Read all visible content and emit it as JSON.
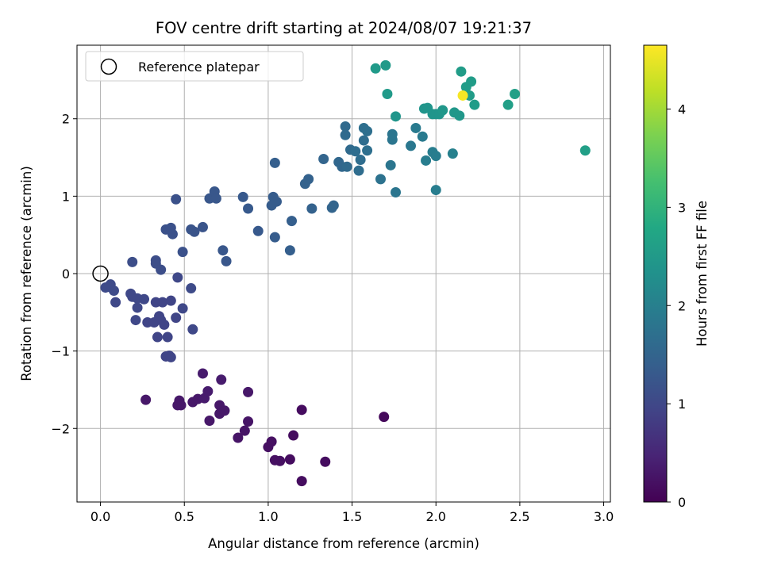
{
  "chart_data": {
    "type": "scatter",
    "title": "FOV centre drift starting at 2024/08/07 19:21:37",
    "xlabel": "Angular distance from reference (arcmin)",
    "ylabel": "Rotation from reference (arcmin)",
    "xlim": [
      -0.14,
      3.04
    ],
    "ylim": [
      -2.95,
      2.95
    ],
    "x_ticks": [
      "0.0",
      "0.5",
      "1.0",
      "1.5",
      "2.0",
      "2.5",
      "3.0"
    ],
    "y_ticks": [
      "−2",
      "−1",
      "0",
      "1",
      "2"
    ],
    "grid": true,
    "legend": {
      "label": "Reference platepar",
      "position": "top-left"
    },
    "reference_point": {
      "x": 0.0,
      "y": 0.0
    },
    "colorbar": {
      "label": "Hours from first FF file",
      "colormap": "viridis",
      "range": [
        0,
        4.65
      ],
      "ticks": [
        "0",
        "1",
        "2",
        "3",
        "4"
      ]
    },
    "series": [
      {
        "name": "FOV centre drift",
        "points": [
          [
            0.03,
            -0.18,
            1.05
          ],
          [
            0.05,
            -0.17,
            1.05
          ],
          [
            0.06,
            -0.14,
            1.05
          ],
          [
            0.08,
            -0.22,
            1.05
          ],
          [
            0.09,
            -0.37,
            1.0
          ],
          [
            0.18,
            -0.26,
            1.0
          ],
          [
            0.19,
            -0.3,
            1.0
          ],
          [
            0.21,
            -0.6,
            1.0
          ],
          [
            0.22,
            -0.44,
            1.0
          ],
          [
            0.22,
            -0.32,
            1.0
          ],
          [
            0.26,
            -0.33,
            1.0
          ],
          [
            0.28,
            -0.63,
            0.95
          ],
          [
            0.32,
            -0.63,
            0.95
          ],
          [
            0.33,
            -0.37,
            0.95
          ],
          [
            0.34,
            -0.82,
            0.95
          ],
          [
            0.35,
            -0.55,
            0.95
          ],
          [
            0.36,
            -0.6,
            0.95
          ],
          [
            0.37,
            -0.37,
            0.95
          ],
          [
            0.38,
            -0.66,
            0.95
          ],
          [
            0.39,
            -1.07,
            0.95
          ],
          [
            0.4,
            -0.82,
            0.95
          ],
          [
            0.41,
            -1.06,
            0.95
          ],
          [
            0.42,
            -1.08,
            0.95
          ],
          [
            0.42,
            -0.35,
            0.95
          ],
          [
            0.45,
            -0.57,
            0.95
          ],
          [
            0.46,
            -0.05,
            1.0
          ],
          [
            0.49,
            -0.45,
            1.0
          ],
          [
            0.54,
            -0.19,
            1.05
          ],
          [
            0.55,
            -0.72,
            1.0
          ],
          [
            0.19,
            0.15,
            1.1
          ],
          [
            0.33,
            0.13,
            1.1
          ],
          [
            0.33,
            0.17,
            1.1
          ],
          [
            0.36,
            0.05,
            1.1
          ],
          [
            0.39,
            0.57,
            1.15
          ],
          [
            0.41,
            0.57,
            1.15
          ],
          [
            0.42,
            0.59,
            1.15
          ],
          [
            0.43,
            0.51,
            1.15
          ],
          [
            0.45,
            0.96,
            1.15
          ],
          [
            0.49,
            0.28,
            1.15
          ],
          [
            0.54,
            0.57,
            1.2
          ],
          [
            0.56,
            0.54,
            1.2
          ],
          [
            0.61,
            0.6,
            1.2
          ],
          [
            0.65,
            0.97,
            1.25
          ],
          [
            0.68,
            1.06,
            1.25
          ],
          [
            0.69,
            0.97,
            1.25
          ],
          [
            0.73,
            0.3,
            1.25
          ],
          [
            0.75,
            0.16,
            1.25
          ],
          [
            0.85,
            0.99,
            1.3
          ],
          [
            0.88,
            0.84,
            1.3
          ],
          [
            0.94,
            0.55,
            1.3
          ],
          [
            1.02,
            0.88,
            1.35
          ],
          [
            1.03,
            0.99,
            1.35
          ],
          [
            1.04,
            0.47,
            1.35
          ],
          [
            1.05,
            0.93,
            1.35
          ],
          [
            1.04,
            1.43,
            1.4
          ],
          [
            1.13,
            0.3,
            1.4
          ],
          [
            1.14,
            0.68,
            1.4
          ],
          [
            1.22,
            1.16,
            1.45
          ],
          [
            1.24,
            1.22,
            1.45
          ],
          [
            1.26,
            0.84,
            1.45
          ],
          [
            1.33,
            1.48,
            1.5
          ],
          [
            1.38,
            0.85,
            1.5
          ],
          [
            1.39,
            0.88,
            1.5
          ],
          [
            1.42,
            1.44,
            1.55
          ],
          [
            1.44,
            1.38,
            1.55
          ],
          [
            1.46,
            1.79,
            1.6
          ],
          [
            1.46,
            1.9,
            1.6
          ],
          [
            1.47,
            1.38,
            1.6
          ],
          [
            1.49,
            1.6,
            1.6
          ],
          [
            1.52,
            1.58,
            1.65
          ],
          [
            1.54,
            1.33,
            1.65
          ],
          [
            1.55,
            1.47,
            1.65
          ],
          [
            1.57,
            1.72,
            1.65
          ],
          [
            1.57,
            1.88,
            1.7
          ],
          [
            1.59,
            1.59,
            1.7
          ],
          [
            1.59,
            1.84,
            1.7
          ],
          [
            1.67,
            1.22,
            1.75
          ],
          [
            1.73,
            1.4,
            1.8
          ],
          [
            1.74,
            1.73,
            1.8
          ],
          [
            1.74,
            1.8,
            1.8
          ],
          [
            1.76,
            1.05,
            1.8
          ],
          [
            1.85,
            1.65,
            1.85
          ],
          [
            1.88,
            1.88,
            1.9
          ],
          [
            1.92,
            1.77,
            1.9
          ],
          [
            1.94,
            1.46,
            1.95
          ],
          [
            1.98,
            1.57,
            1.95
          ],
          [
            2.0,
            1.52,
            1.95
          ],
          [
            2.0,
            1.08,
            1.95
          ],
          [
            2.1,
            1.55,
            2.0
          ],
          [
            2.89,
            1.59,
            2.6
          ],
          [
            1.64,
            2.65,
            2.5
          ],
          [
            1.7,
            2.69,
            2.5
          ],
          [
            1.71,
            2.32,
            2.5
          ],
          [
            1.76,
            2.03,
            2.4
          ],
          [
            1.93,
            2.13,
            2.4
          ],
          [
            1.95,
            2.14,
            2.4
          ],
          [
            1.98,
            2.06,
            2.4
          ],
          [
            2.0,
            2.06,
            2.4
          ],
          [
            2.02,
            2.06,
            2.4
          ],
          [
            2.04,
            2.11,
            2.45
          ],
          [
            2.11,
            2.08,
            2.45
          ],
          [
            2.14,
            2.04,
            2.45
          ],
          [
            2.15,
            2.61,
            2.55
          ],
          [
            2.18,
            2.41,
            2.55
          ],
          [
            2.2,
            2.3,
            2.55
          ],
          [
            2.21,
            2.48,
            2.55
          ],
          [
            2.23,
            2.18,
            2.55
          ],
          [
            2.43,
            2.18,
            2.6
          ],
          [
            2.47,
            2.32,
            2.6
          ],
          [
            2.16,
            2.3,
            4.6
          ],
          [
            0.27,
            -1.63,
            0.3
          ],
          [
            0.46,
            -1.7,
            0.3
          ],
          [
            0.47,
            -1.64,
            0.3
          ],
          [
            0.48,
            -1.7,
            0.3
          ],
          [
            0.55,
            -1.66,
            0.3
          ],
          [
            0.58,
            -1.62,
            0.3
          ],
          [
            0.61,
            -1.29,
            0.35
          ],
          [
            0.62,
            -1.61,
            0.35
          ],
          [
            0.64,
            -1.52,
            0.35
          ],
          [
            0.65,
            -1.9,
            0.3
          ],
          [
            0.71,
            -1.7,
            0.3
          ],
          [
            0.71,
            -1.81,
            0.3
          ],
          [
            0.72,
            -1.37,
            0.35
          ],
          [
            0.74,
            -1.77,
            0.3
          ],
          [
            0.82,
            -2.12,
            0.25
          ],
          [
            0.86,
            -2.03,
            0.25
          ],
          [
            0.88,
            -1.53,
            0.3
          ],
          [
            0.88,
            -1.91,
            0.25
          ],
          [
            1.0,
            -2.24,
            0.2
          ],
          [
            1.02,
            -2.17,
            0.2
          ],
          [
            1.04,
            -2.41,
            0.2
          ],
          [
            1.07,
            -2.42,
            0.2
          ],
          [
            1.13,
            -2.4,
            0.15
          ],
          [
            1.15,
            -2.09,
            0.15
          ],
          [
            1.2,
            -1.76,
            0.15
          ],
          [
            1.2,
            -2.68,
            0.15
          ],
          [
            1.34,
            -2.43,
            0.15
          ],
          [
            1.69,
            -1.85,
            0.1
          ]
        ]
      }
    ]
  },
  "colors": {
    "reference_marker_edge": "#000000",
    "grid": "#b0b0b0",
    "axes": "#000000"
  }
}
